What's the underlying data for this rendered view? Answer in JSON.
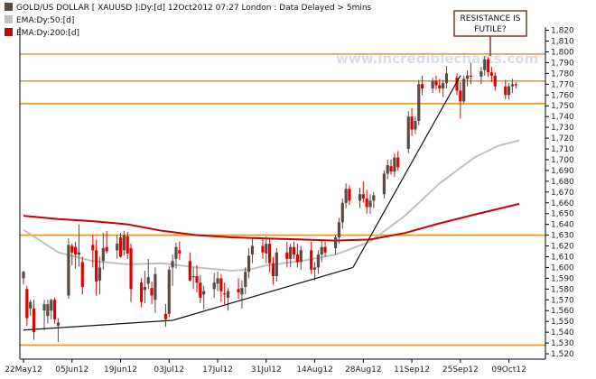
{
  "chart_data": {
    "type": "candlestick",
    "title": "GOLD/US DOLLAR [ XAUUSD ]:Dy:[d]  12Oct2012 07:27 London : Data Delayed > 5mins",
    "ylim": [
      1515,
      1823
    ],
    "legend": [
      {
        "label": "GOLD/US DOLLAR [ XAUUSD ]:Dy:[d]  12Oct2012 07:27 London : Data Delayed > 5mins",
        "color": "#5a4a42"
      },
      {
        "label": "EMA:Dy:50:[d]",
        "color": "#bfbfbf"
      },
      {
        "label": "EMA:Dy:200:[d]",
        "color": "#cc0000"
      }
    ],
    "watermark": "www.incrediblecharts.com",
    "annotation": {
      "line1": "RESISTANCE IS",
      "line2": "FUTILE?"
    },
    "x_labels": [
      {
        "label": "22May12",
        "day": 0
      },
      {
        "label": "05Jun12",
        "day": 14
      },
      {
        "label": "19Jun12",
        "day": 28
      },
      {
        "label": "03Jul12",
        "day": 42
      },
      {
        "label": "17Jul12",
        "day": 56
      },
      {
        "label": "31Jul12",
        "day": 70
      },
      {
        "label": "14Aug12",
        "day": 84
      },
      {
        "label": "28Aug12",
        "day": 98
      },
      {
        "label": "11Sep12",
        "day": 112
      },
      {
        "label": "25Sep12",
        "day": 126
      },
      {
        "label": "09Oct12",
        "day": 140
      }
    ],
    "y_ticks": [
      1520,
      1530,
      1540,
      1550,
      1560,
      1570,
      1580,
      1590,
      1600,
      1610,
      1620,
      1630,
      1640,
      1650,
      1660,
      1670,
      1680,
      1690,
      1700,
      1710,
      1720,
      1730,
      1740,
      1750,
      1760,
      1770,
      1780,
      1790,
      1800,
      1810,
      1820
    ],
    "horizontal_levels": [
      1528,
      1630,
      1752,
      1773,
      1798
    ],
    "trendlines": [
      {
        "from": {
          "day": 0,
          "price": 1542
        },
        "to": {
          "day": 43,
          "price": 1551
        }
      },
      {
        "from": {
          "day": 43,
          "price": 1551
        },
        "to": {
          "day": 95,
          "price": 1600
        }
      },
      {
        "from": {
          "day": 95,
          "price": 1600
        },
        "to": {
          "day": 126,
          "price": 1778
        }
      }
    ],
    "ema_50": [
      {
        "day": 0,
        "price": 1635
      },
      {
        "day": 10,
        "price": 1614
      },
      {
        "day": 20,
        "price": 1606
      },
      {
        "day": 30,
        "price": 1603
      },
      {
        "day": 40,
        "price": 1604
      },
      {
        "day": 50,
        "price": 1600
      },
      {
        "day": 60,
        "price": 1597
      },
      {
        "day": 65,
        "price": 1598
      },
      {
        "day": 70,
        "price": 1602
      },
      {
        "day": 80,
        "price": 1606
      },
      {
        "day": 90,
        "price": 1612
      },
      {
        "day": 100,
        "price": 1624
      },
      {
        "day": 110,
        "price": 1648
      },
      {
        "day": 120,
        "price": 1678
      },
      {
        "day": 130,
        "price": 1702
      },
      {
        "day": 137,
        "price": 1713
      },
      {
        "day": 143,
        "price": 1718
      }
    ],
    "ema_200": [
      {
        "day": 0,
        "price": 1648
      },
      {
        "day": 10,
        "price": 1645
      },
      {
        "day": 20,
        "price": 1643
      },
      {
        "day": 30,
        "price": 1640
      },
      {
        "day": 40,
        "price": 1634
      },
      {
        "day": 50,
        "price": 1630
      },
      {
        "day": 60,
        "price": 1628
      },
      {
        "day": 70,
        "price": 1627
      },
      {
        "day": 80,
        "price": 1626
      },
      {
        "day": 90,
        "price": 1625
      },
      {
        "day": 100,
        "price": 1626
      },
      {
        "day": 110,
        "price": 1632
      },
      {
        "day": 120,
        "price": 1641
      },
      {
        "day": 130,
        "price": 1649
      },
      {
        "day": 143,
        "price": 1659
      }
    ],
    "candles": [
      {
        "day": 0,
        "open": 1590,
        "high": 1597,
        "low": 1584,
        "close": 1596
      },
      {
        "day": 1,
        "open": 1580,
        "high": 1583,
        "low": 1546,
        "close": 1553
      },
      {
        "day": 2,
        "open": 1562,
        "high": 1570,
        "low": 1555,
        "close": 1568
      },
      {
        "day": 3,
        "open": 1562,
        "high": 1570,
        "low": 1533,
        "close": 1540
      },
      {
        "day": 6,
        "open": 1560,
        "high": 1570,
        "low": 1542,
        "close": 1566
      },
      {
        "day": 7,
        "open": 1555,
        "high": 1570,
        "low": 1548,
        "close": 1566
      },
      {
        "day": 8,
        "open": 1560,
        "high": 1571,
        "low": 1552,
        "close": 1570
      },
      {
        "day": 9,
        "open": 1570,
        "high": 1572,
        "low": 1548,
        "close": 1552
      },
      {
        "day": 10,
        "open": 1546,
        "high": 1553,
        "low": 1531,
        "close": 1549
      },
      {
        "day": 13,
        "open": 1574,
        "high": 1627,
        "low": 1571,
        "close": 1621
      },
      {
        "day": 14,
        "open": 1620,
        "high": 1622,
        "low": 1602,
        "close": 1614
      },
      {
        "day": 15,
        "open": 1619,
        "high": 1624,
        "low": 1599,
        "close": 1612
      },
      {
        "day": 16,
        "open": 1612,
        "high": 1640,
        "low": 1601,
        "close": 1614
      },
      {
        "day": 17,
        "open": 1605,
        "high": 1610,
        "low": 1575,
        "close": 1582
      },
      {
        "day": 20,
        "open": 1621,
        "high": 1630,
        "low": 1600,
        "close": 1616
      },
      {
        "day": 21,
        "open": 1616,
        "high": 1626,
        "low": 1574,
        "close": 1587
      },
      {
        "day": 22,
        "open": 1588,
        "high": 1610,
        "low": 1575,
        "close": 1600
      },
      {
        "day": 23,
        "open": 1606,
        "high": 1632,
        "low": 1598,
        "close": 1618
      },
      {
        "day": 24,
        "open": 1619,
        "high": 1634,
        "low": 1613,
        "close": 1615
      },
      {
        "day": 27,
        "open": 1616,
        "high": 1630,
        "low": 1608,
        "close": 1622
      },
      {
        "day": 28,
        "open": 1628,
        "high": 1632,
        "low": 1609,
        "close": 1610
      },
      {
        "day": 29,
        "open": 1616,
        "high": 1634,
        "low": 1611,
        "close": 1630
      },
      {
        "day": 30,
        "open": 1629,
        "high": 1633,
        "low": 1608,
        "close": 1613
      },
      {
        "day": 31,
        "open": 1618,
        "high": 1622,
        "low": 1568,
        "close": 1580
      },
      {
        "day": 34,
        "open": 1586,
        "high": 1590,
        "low": 1563,
        "close": 1568
      },
      {
        "day": 35,
        "open": 1579,
        "high": 1597,
        "low": 1567,
        "close": 1582
      },
      {
        "day": 36,
        "open": 1585,
        "high": 1608,
        "low": 1580,
        "close": 1591
      },
      {
        "day": 37,
        "open": 1581,
        "high": 1587,
        "low": 1566,
        "close": 1574
      },
      {
        "day": 38,
        "open": 1570,
        "high": 1600,
        "low": 1558,
        "close": 1594
      },
      {
        "day": 41,
        "open": 1557,
        "high": 1566,
        "low": 1545,
        "close": 1552
      },
      {
        "day": 42,
        "open": 1557,
        "high": 1601,
        "low": 1554,
        "close": 1598
      },
      {
        "day": 43,
        "open": 1600,
        "high": 1612,
        "low": 1583,
        "close": 1606
      },
      {
        "day": 44,
        "open": 1608,
        "high": 1623,
        "low": 1599,
        "close": 1619
      },
      {
        "day": 45,
        "open": 1616,
        "high": 1624,
        "low": 1607,
        "close": 1613
      },
      {
        "day": 48,
        "open": 1606,
        "high": 1614,
        "low": 1587,
        "close": 1588
      },
      {
        "day": 49,
        "open": 1591,
        "high": 1600,
        "low": 1580,
        "close": 1592
      },
      {
        "day": 50,
        "open": 1592,
        "high": 1602,
        "low": 1577,
        "close": 1586
      },
      {
        "day": 51,
        "open": 1586,
        "high": 1593,
        "low": 1567,
        "close": 1572
      },
      {
        "day": 52,
        "open": 1575,
        "high": 1583,
        "low": 1561,
        "close": 1578
      },
      {
        "day": 55,
        "open": 1580,
        "high": 1595,
        "low": 1572,
        "close": 1586
      },
      {
        "day": 56,
        "open": 1585,
        "high": 1596,
        "low": 1578,
        "close": 1590
      },
      {
        "day": 57,
        "open": 1590,
        "high": 1594,
        "low": 1568,
        "close": 1578
      },
      {
        "day": 58,
        "open": 1576,
        "high": 1586,
        "low": 1566,
        "close": 1575
      },
      {
        "day": 59,
        "open": 1572,
        "high": 1581,
        "low": 1560,
        "close": 1578
      },
      {
        "day": 62,
        "open": 1580,
        "high": 1590,
        "low": 1571,
        "close": 1577
      },
      {
        "day": 63,
        "open": 1575,
        "high": 1588,
        "low": 1562,
        "close": 1581
      },
      {
        "day": 64,
        "open": 1582,
        "high": 1600,
        "low": 1575,
        "close": 1596
      },
      {
        "day": 65,
        "open": 1596,
        "high": 1618,
        "low": 1590,
        "close": 1611
      },
      {
        "day": 66,
        "open": 1612,
        "high": 1627,
        "low": 1604,
        "close": 1620
      },
      {
        "day": 69,
        "open": 1620,
        "high": 1628,
        "low": 1608,
        "close": 1614
      },
      {
        "day": 70,
        "open": 1613,
        "high": 1629,
        "low": 1604,
        "close": 1622
      },
      {
        "day": 71,
        "open": 1622,
        "high": 1626,
        "low": 1596,
        "close": 1604
      },
      {
        "day": 72,
        "open": 1604,
        "high": 1610,
        "low": 1584,
        "close": 1592
      },
      {
        "day": 73,
        "open": 1592,
        "high": 1618,
        "low": 1587,
        "close": 1614
      },
      {
        "day": 76,
        "open": 1614,
        "high": 1624,
        "low": 1600,
        "close": 1608
      },
      {
        "day": 77,
        "open": 1608,
        "high": 1622,
        "low": 1600,
        "close": 1619
      },
      {
        "day": 78,
        "open": 1619,
        "high": 1624,
        "low": 1608,
        "close": 1612
      },
      {
        "day": 79,
        "open": 1612,
        "high": 1622,
        "low": 1600,
        "close": 1605
      },
      {
        "day": 80,
        "open": 1605,
        "high": 1620,
        "low": 1598,
        "close": 1616
      },
      {
        "day": 83,
        "open": 1616,
        "high": 1624,
        "low": 1594,
        "close": 1598
      },
      {
        "day": 84,
        "open": 1598,
        "high": 1605,
        "low": 1588,
        "close": 1600
      },
      {
        "day": 85,
        "open": 1600,
        "high": 1616,
        "low": 1594,
        "close": 1612
      },
      {
        "day": 86,
        "open": 1612,
        "high": 1626,
        "low": 1605,
        "close": 1619
      },
      {
        "day": 87,
        "open": 1619,
        "high": 1624,
        "low": 1610,
        "close": 1614
      },
      {
        "day": 90,
        "open": 1618,
        "high": 1630,
        "low": 1612,
        "close": 1628
      },
      {
        "day": 91,
        "open": 1628,
        "high": 1646,
        "low": 1622,
        "close": 1642
      },
      {
        "day": 92,
        "open": 1642,
        "high": 1664,
        "low": 1636,
        "close": 1660
      },
      {
        "day": 93,
        "open": 1660,
        "high": 1678,
        "low": 1655,
        "close": 1673
      },
      {
        "day": 94,
        "open": 1673,
        "high": 1676,
        "low": 1658,
        "close": 1662
      },
      {
        "day": 97,
        "open": 1662,
        "high": 1674,
        "low": 1655,
        "close": 1668
      },
      {
        "day": 98,
        "open": 1668,
        "high": 1680,
        "low": 1660,
        "close": 1664
      },
      {
        "day": 99,
        "open": 1664,
        "high": 1672,
        "low": 1650,
        "close": 1656
      },
      {
        "day": 100,
        "open": 1656,
        "high": 1668,
        "low": 1650,
        "close": 1662
      },
      {
        "day": 101,
        "open": 1662,
        "high": 1670,
        "low": 1655,
        "close": 1667
      },
      {
        "day": 104,
        "open": 1668,
        "high": 1690,
        "low": 1664,
        "close": 1687
      },
      {
        "day": 105,
        "open": 1687,
        "high": 1700,
        "low": 1682,
        "close": 1695
      },
      {
        "day": 106,
        "open": 1694,
        "high": 1700,
        "low": 1686,
        "close": 1689
      },
      {
        "day": 107,
        "open": 1689,
        "high": 1706,
        "low": 1684,
        "close": 1702
      },
      {
        "day": 108,
        "open": 1702,
        "high": 1708,
        "low": 1690,
        "close": 1693
      },
      {
        "day": 111,
        "open": 1710,
        "high": 1745,
        "low": 1706,
        "close": 1740
      },
      {
        "day": 112,
        "open": 1740,
        "high": 1748,
        "low": 1722,
        "close": 1728
      },
      {
        "day": 113,
        "open": 1728,
        "high": 1740,
        "low": 1724,
        "close": 1736
      },
      {
        "day": 114,
        "open": 1736,
        "high": 1774,
        "low": 1732,
        "close": 1770
      },
      {
        "day": 115,
        "open": 1770,
        "high": 1778,
        "low": 1760,
        "close": 1766
      },
      {
        "day": 118,
        "open": 1766,
        "high": 1776,
        "low": 1762,
        "close": 1773
      },
      {
        "day": 119,
        "open": 1773,
        "high": 1778,
        "low": 1765,
        "close": 1769
      },
      {
        "day": 120,
        "open": 1769,
        "high": 1775,
        "low": 1762,
        "close": 1766
      },
      {
        "day": 121,
        "open": 1766,
        "high": 1774,
        "low": 1758,
        "close": 1771
      },
      {
        "day": 122,
        "open": 1771,
        "high": 1787,
        "low": 1766,
        "close": 1780
      },
      {
        "day": 125,
        "open": 1776,
        "high": 1780,
        "low": 1760,
        "close": 1764
      },
      {
        "day": 126,
        "open": 1764,
        "high": 1772,
        "low": 1738,
        "close": 1754
      },
      {
        "day": 127,
        "open": 1754,
        "high": 1778,
        "low": 1752,
        "close": 1775
      },
      {
        "day": 128,
        "open": 1775,
        "high": 1783,
        "low": 1768,
        "close": 1778
      },
      {
        "day": 129,
        "open": 1778,
        "high": 1790,
        "low": 1770,
        "close": 1777
      },
      {
        "day": 132,
        "open": 1777,
        "high": 1786,
        "low": 1770,
        "close": 1782
      },
      {
        "day": 133,
        "open": 1783,
        "high": 1796,
        "low": 1778,
        "close": 1793
      },
      {
        "day": 134,
        "open": 1793,
        "high": 1795,
        "low": 1777,
        "close": 1781
      },
      {
        "day": 135,
        "open": 1781,
        "high": 1786,
        "low": 1772,
        "close": 1778
      },
      {
        "day": 136,
        "open": 1778,
        "high": 1781,
        "low": 1764,
        "close": 1768
      },
      {
        "day": 139,
        "open": 1768,
        "high": 1774,
        "low": 1756,
        "close": 1760
      },
      {
        "day": 140,
        "open": 1760,
        "high": 1771,
        "low": 1756,
        "close": 1768
      },
      {
        "day": 141,
        "open": 1768,
        "high": 1775,
        "low": 1762,
        "close": 1770
      },
      {
        "day": 142,
        "open": 1770,
        "high": 1772,
        "low": 1766,
        "close": 1769
      }
    ]
  },
  "colors": {
    "up_candle": "#5a4a42",
    "down_candle": "#e00000",
    "ema_50": "#c0c0c0",
    "ema_200": "#cc0000",
    "level_line": "#e8922a",
    "trendline": "#111111",
    "watermark": "#d9dee8",
    "callout_border": "#7a3a2a"
  }
}
